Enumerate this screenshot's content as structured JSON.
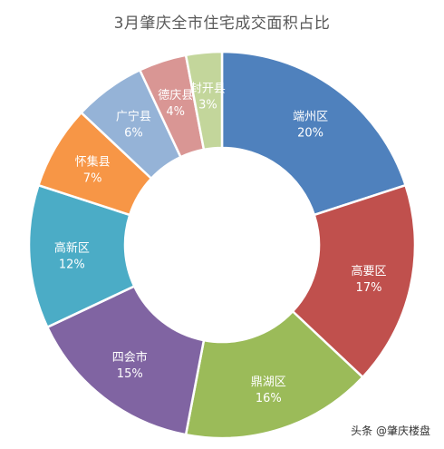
{
  "chart_data": {
    "type": "pie",
    "variant": "donut",
    "title": "3月肇庆全市住宅成交面积占比",
    "categories": [
      "端州区",
      "高要区",
      "鼎湖区",
      "四会市",
      "高新区",
      "怀集县",
      "广宁县",
      "德庆县",
      "封开县"
    ],
    "values": [
      20,
      17,
      16,
      15,
      12,
      7,
      6,
      4,
      3
    ],
    "value_labels": [
      "20%",
      "17%",
      "16%",
      "15%",
      "12%",
      "7%",
      "6%",
      "4%",
      "3%"
    ],
    "colors": [
      "#4F81BD",
      "#C0504D",
      "#9BBB59",
      "#8064A2",
      "#4BACC6",
      "#F79646",
      "#95B3D7",
      "#D99694",
      "#C3D69B"
    ],
    "legend": "none"
  },
  "watermark": "头条 @肇庆楼盘"
}
